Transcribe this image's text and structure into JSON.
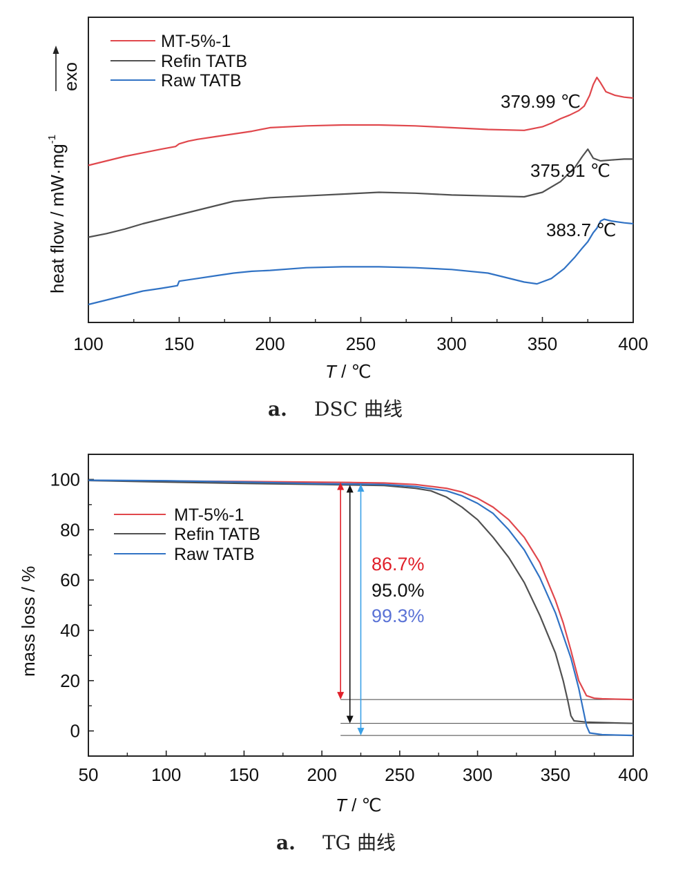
{
  "chart_data": [
    {
      "type": "line",
      "xlabel_italic": "T",
      "xlabel_unit": " / ℃",
      "ylabel": "heat flow / mW·mg",
      "ylabel_sup": "-1",
      "exo_label": "exo",
      "xlim": [
        100,
        400
      ],
      "xticks": [
        100,
        150,
        200,
        250,
        300,
        350,
        400
      ],
      "y_ticks_shown": false,
      "legend_position": "top-left",
      "caption_letter": "a.",
      "caption_text": "DSC 曲线",
      "series": [
        {
          "name": "MT-5%-1",
          "color": "#e0474c",
          "x": [
            100,
            110,
            120,
            130,
            140,
            148,
            150,
            155,
            160,
            170,
            180,
            190,
            200,
            220,
            240,
            260,
            280,
            300,
            320,
            340,
            350,
            355,
            360,
            365,
            370,
            373,
            376,
            378,
            380,
            382,
            385,
            390,
            395,
            400
          ],
          "y": [
            0.3,
            0.35,
            0.4,
            0.44,
            0.48,
            0.51,
            0.54,
            0.57,
            0.59,
            0.62,
            0.65,
            0.68,
            0.72,
            0.74,
            0.75,
            0.75,
            0.74,
            0.72,
            0.7,
            0.69,
            0.73,
            0.77,
            0.82,
            0.86,
            0.91,
            0.96,
            1.08,
            1.2,
            1.28,
            1.22,
            1.12,
            1.08,
            1.06,
            1.05
          ]
        },
        {
          "name": "Refin TATB",
          "color": "#505050",
          "x": [
            100,
            110,
            120,
            130,
            140,
            150,
            160,
            170,
            180,
            190,
            200,
            220,
            240,
            260,
            280,
            300,
            320,
            340,
            350,
            360,
            365,
            368,
            372,
            375,
            378,
            382,
            388,
            395,
            400
          ],
          "y": [
            -0.5,
            -0.46,
            -0.41,
            -0.35,
            -0.3,
            -0.25,
            -0.2,
            -0.15,
            -0.1,
            -0.08,
            -0.06,
            -0.04,
            -0.02,
            0.0,
            -0.01,
            -0.03,
            -0.04,
            -0.05,
            0.0,
            0.12,
            0.22,
            0.28,
            0.4,
            0.48,
            0.38,
            0.35,
            0.36,
            0.37,
            0.37
          ]
        },
        {
          "name": "Raw TATB",
          "color": "#3072c4",
          "x": [
            100,
            110,
            120,
            130,
            140,
            149,
            150,
            160,
            170,
            180,
            190,
            200,
            220,
            240,
            260,
            280,
            300,
            320,
            340,
            347,
            355,
            362,
            368,
            372,
            375,
            378,
            380,
            382,
            384,
            388,
            395,
            400
          ],
          "y": [
            -1.25,
            -1.2,
            -1.15,
            -1.1,
            -1.07,
            -1.04,
            -0.99,
            -0.96,
            -0.93,
            -0.9,
            -0.88,
            -0.87,
            -0.84,
            -0.83,
            -0.83,
            -0.84,
            -0.86,
            -0.9,
            -1.0,
            -1.02,
            -0.96,
            -0.85,
            -0.72,
            -0.62,
            -0.55,
            -0.45,
            -0.4,
            -0.32,
            -0.3,
            -0.32,
            -0.34,
            -0.35
          ]
        }
      ],
      "peak_labels": [
        "379.99 ℃",
        "375.91 ℃",
        "383.7 ℃"
      ]
    },
    {
      "type": "line",
      "xlabel_italic": "T",
      "xlabel_unit": " / ℃",
      "ylabel": "mass loss / %",
      "xlim": [
        50,
        400
      ],
      "ylim": [
        -10,
        110
      ],
      "xticks": [
        50,
        100,
        150,
        200,
        250,
        300,
        350,
        400
      ],
      "yticks": [
        0,
        20,
        40,
        60,
        80,
        100
      ],
      "legend_position": "center-left",
      "caption_letter": "a.",
      "caption_text": "TG 曲线",
      "series": [
        {
          "name": "MT-5%-1",
          "color": "#e0474c",
          "x": [
            50,
            100,
            150,
            200,
            220,
            240,
            260,
            280,
            290,
            300,
            310,
            320,
            330,
            340,
            350,
            355,
            360,
            365,
            370,
            375,
            380,
            400
          ],
          "y": [
            99.6,
            99.4,
            99.2,
            98.9,
            98.8,
            98.6,
            98.0,
            96.5,
            95.0,
            92.5,
            89.0,
            84.0,
            77.0,
            67.0,
            52.0,
            43.0,
            32.0,
            20.0,
            14.0,
            13.0,
            12.8,
            12.5
          ]
        },
        {
          "name": "Refin TATB",
          "color": "#505050",
          "x": [
            50,
            100,
            150,
            200,
            220,
            240,
            260,
            270,
            280,
            290,
            300,
            310,
            320,
            330,
            340,
            350,
            355,
            358,
            360,
            362,
            370,
            400
          ],
          "y": [
            99.6,
            99.0,
            98.4,
            98.0,
            97.8,
            97.6,
            96.5,
            95.5,
            93.0,
            89.0,
            84.0,
            77.0,
            69.0,
            59.0,
            46.0,
            31.0,
            20.0,
            12.0,
            6.0,
            4.0,
            3.5,
            3.0
          ]
        },
        {
          "name": "Raw TATB",
          "color": "#3072c4",
          "x": [
            50,
            100,
            150,
            200,
            220,
            240,
            260,
            280,
            290,
            300,
            310,
            320,
            330,
            340,
            350,
            360,
            365,
            368,
            370,
            372,
            380,
            400
          ],
          "y": [
            99.7,
            99.5,
            99.0,
            98.3,
            98.2,
            98.0,
            97.2,
            95.5,
            93.5,
            90.5,
            86.5,
            80.0,
            72.0,
            61.0,
            47.0,
            29.0,
            17.0,
            8.0,
            2.0,
            -0.8,
            -1.5,
            -1.8
          ]
        }
      ],
      "annotations": [
        {
          "text": "86.7%",
          "color": "#e0202a"
        },
        {
          "text": "95.0%",
          "color": "#111111"
        },
        {
          "text": "99.3%",
          "color": "#5b73d6"
        }
      ],
      "arrow_colors": [
        "#e0202a",
        "#111111",
        "#3aa0e6"
      ],
      "arrow_x": [
        212,
        218,
        225
      ]
    }
  ]
}
